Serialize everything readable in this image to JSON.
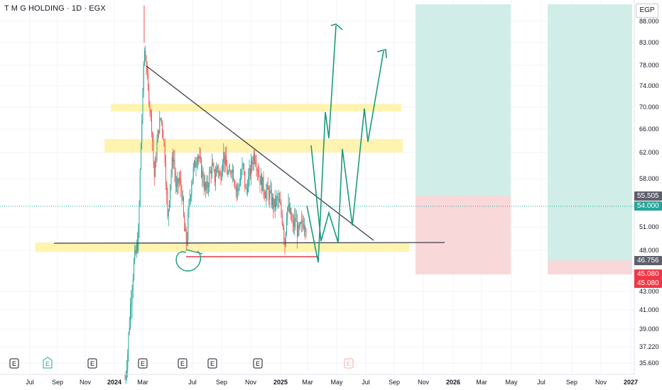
{
  "header": {
    "symbol_title": "T M G HOLDING · 1D · EGX",
    "currency": "EGP"
  },
  "chart_data": {
    "type": "candlestick",
    "symbol": "T M G HOLDING",
    "interval": "1D",
    "exchange": "EGX",
    "currency": "EGP",
    "y_ticks": [
      "88.000",
      "83.000",
      "78.000",
      "74.000",
      "70.000",
      "66.000",
      "62.000",
      "58.000",
      "51.000",
      "48.000",
      "43.000",
      "41.000",
      "39.000",
      "37.220",
      "35.600"
    ],
    "x_ticks": [
      "Jul",
      "Sep",
      "Nov",
      "2024",
      "Mar",
      "Jul",
      "Sep",
      "Nov",
      "2025",
      "Mar",
      "May",
      "Jul",
      "Sep",
      "Nov",
      "2026",
      "Mar",
      "May",
      "Jul",
      "Sep",
      "Nov",
      "2027"
    ],
    "price_labels": [
      {
        "value": "55.505",
        "kind": "neutral"
      },
      {
        "value": "54.000",
        "kind": "last"
      },
      {
        "value": "46.756",
        "kind": "neutral"
      },
      {
        "value": "45.080",
        "kind": "stop"
      },
      {
        "value": "45.080",
        "kind": "stop"
      }
    ],
    "last_price": 54.0,
    "events": [
      {
        "x": "Sep",
        "label": "E",
        "style": "dark"
      },
      {
        "x": "Nov",
        "label": "E",
        "style": "green"
      },
      {
        "x": "2024",
        "label": "E",
        "style": "dark"
      },
      {
        "x": "Mar",
        "label": "E",
        "style": "dark"
      },
      {
        "x": "Jul",
        "label": "E",
        "style": "dark"
      },
      {
        "x": "Sep",
        "label": "E",
        "style": "dark"
      },
      {
        "x": "Nov",
        "label": "E",
        "style": "dark"
      },
      {
        "x": "Mar 2025",
        "label": "E",
        "style": "red"
      }
    ],
    "support_zones": [
      {
        "from": 69.2,
        "to": 70.6
      },
      {
        "from": 62.0,
        "to": 64.3
      },
      {
        "from": 47.8,
        "to": 49.0
      }
    ],
    "horizontal_support": 48.7,
    "positions": [
      {
        "entry": 55.505,
        "target": 88.0,
        "stop": 45.08
      },
      {
        "entry": 46.756,
        "target": 88.0,
        "stop": 45.08
      }
    ],
    "colors": {
      "up": "#26a69a",
      "down": "#ef5350",
      "wick": "#555555",
      "zone": "#fff3b0",
      "profit": "#d1ede7",
      "loss": "#f9d8da",
      "projection": "#1a9b7d",
      "trend": "#3b3f47"
    }
  }
}
